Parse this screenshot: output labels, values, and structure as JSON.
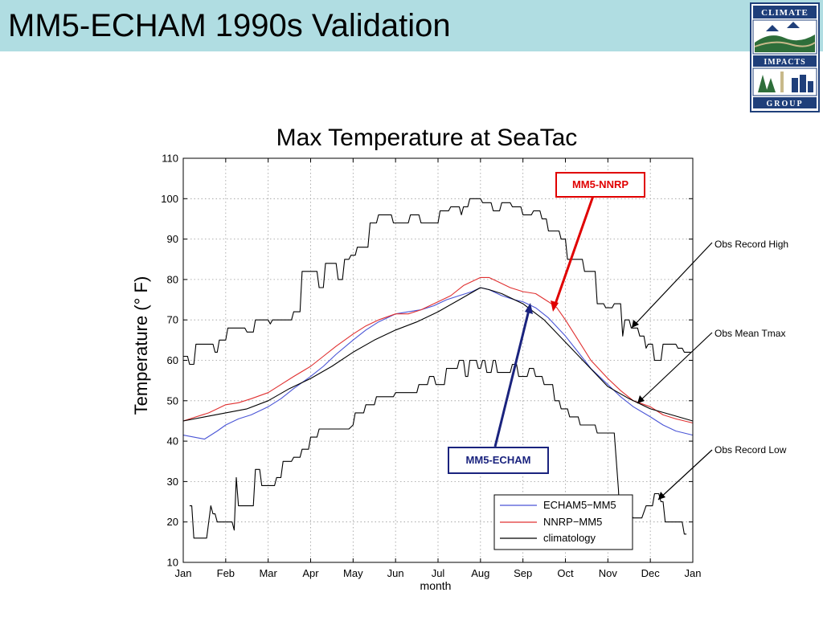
{
  "slide": {
    "title": "MM5-ECHAM 1990s Validation",
    "title_bar_color": "#b0dde2"
  },
  "logo": {
    "name": "climate-impacts-group-logo",
    "text_lines": [
      "CLIMATE",
      "IMPACTS",
      "GROUP"
    ],
    "colors": {
      "navy": "#1f3f7a",
      "green": "#2e6e3a",
      "tan": "#c8b98a"
    }
  },
  "annotations": {
    "record_high": "Obs Record High",
    "mean_tmax": "Obs Mean Tmax",
    "record_low": "Obs Record Low",
    "callout_nnrp": "MM5-NNRP",
    "callout_echam": "MM5-ECHAM"
  },
  "chart_data": {
    "type": "line",
    "title": "Max Temperature at SeaTac",
    "xlabel": "month",
    "ylabel": "Temperature (°   F)",
    "ylim": [
      10,
      110
    ],
    "xlim": [
      0,
      12
    ],
    "grid": true,
    "legend_position": "bottom-right",
    "x_ticks": [
      "Jan",
      "Feb",
      "Mar",
      "Apr",
      "May",
      "Jun",
      "Jul",
      "Aug",
      "Sep",
      "Oct",
      "Nov",
      "Dec",
      "Jan"
    ],
    "y_ticks": [
      10,
      20,
      30,
      40,
      50,
      60,
      70,
      80,
      90,
      100,
      110
    ],
    "series": [
      {
        "name": "ECHAM5−MM5",
        "color": "#4a55d6",
        "points": [
          [
            0,
            41.5
          ],
          [
            0.25,
            41
          ],
          [
            0.5,
            40.5
          ],
          [
            0.8,
            42.5
          ],
          [
            1,
            44
          ],
          [
            1.3,
            45.5
          ],
          [
            1.6,
            46.5
          ],
          [
            2,
            48.5
          ],
          [
            2.3,
            50.5
          ],
          [
            2.6,
            53
          ],
          [
            3,
            56
          ],
          [
            3.3,
            58.5
          ],
          [
            3.6,
            61.5
          ],
          [
            4,
            65
          ],
          [
            4.3,
            67.5
          ],
          [
            4.6,
            69.5
          ],
          [
            5,
            71.5
          ],
          [
            5.3,
            72
          ],
          [
            5.6,
            72.5
          ],
          [
            5.9,
            73.5
          ],
          [
            6.2,
            75
          ],
          [
            6.5,
            76
          ],
          [
            6.8,
            77
          ],
          [
            7,
            78
          ],
          [
            7.2,
            77.5
          ],
          [
            7.5,
            76
          ],
          [
            7.8,
            75
          ],
          [
            8,
            74.5
          ],
          [
            8.3,
            73
          ],
          [
            8.6,
            70.5
          ],
          [
            9,
            66
          ],
          [
            9.3,
            62
          ],
          [
            9.6,
            58
          ],
          [
            10,
            54
          ],
          [
            10.3,
            51
          ],
          [
            10.6,
            48.5
          ],
          [
            11,
            46
          ],
          [
            11.3,
            44
          ],
          [
            11.6,
            42.5
          ],
          [
            12,
            41.5
          ]
        ]
      },
      {
        "name": "NNRP−MM5",
        "color": "#e03030",
        "points": [
          [
            0,
            45
          ],
          [
            0.3,
            46
          ],
          [
            0.6,
            47
          ],
          [
            1,
            49
          ],
          [
            1.3,
            49.5
          ],
          [
            1.6,
            50.5
          ],
          [
            2,
            52
          ],
          [
            2.3,
            54
          ],
          [
            2.6,
            56
          ],
          [
            3,
            58.5
          ],
          [
            3.3,
            61
          ],
          [
            3.6,
            63.5
          ],
          [
            4,
            66.5
          ],
          [
            4.3,
            68.5
          ],
          [
            4.6,
            70
          ],
          [
            5,
            71.5
          ],
          [
            5.3,
            71.5
          ],
          [
            5.6,
            72.5
          ],
          [
            6,
            74.5
          ],
          [
            6.3,
            76
          ],
          [
            6.6,
            78.5
          ],
          [
            7,
            80.5
          ],
          [
            7.2,
            80.5
          ],
          [
            7.4,
            79.5
          ],
          [
            7.7,
            78
          ],
          [
            8,
            77
          ],
          [
            8.3,
            76.5
          ],
          [
            8.6,
            74.5
          ],
          [
            8.8,
            73
          ],
          [
            9,
            70
          ],
          [
            9.3,
            65
          ],
          [
            9.6,
            60
          ],
          [
            10,
            55.5
          ],
          [
            10.3,
            52.5
          ],
          [
            10.6,
            50
          ],
          [
            11,
            48.5
          ],
          [
            11.3,
            46.5
          ],
          [
            11.6,
            45.5
          ],
          [
            12,
            44.5
          ]
        ]
      },
      {
        "name": "climatology",
        "color": "#000000",
        "points": [
          [
            0,
            45
          ],
          [
            0.5,
            46
          ],
          [
            1,
            47
          ],
          [
            1.5,
            48
          ],
          [
            2,
            50
          ],
          [
            2.5,
            53
          ],
          [
            3,
            55.5
          ],
          [
            3.5,
            58.5
          ],
          [
            4,
            62
          ],
          [
            4.5,
            65
          ],
          [
            5,
            67.5
          ],
          [
            5.5,
            69.5
          ],
          [
            6,
            72
          ],
          [
            6.5,
            75
          ],
          [
            7,
            78
          ],
          [
            7.2,
            77.5
          ],
          [
            7.5,
            76.5
          ],
          [
            8,
            74
          ],
          [
            8.5,
            70
          ],
          [
            9,
            64.5
          ],
          [
            9.5,
            59
          ],
          [
            10,
            53.5
          ],
          [
            10.5,
            50.5
          ],
          [
            11,
            48
          ],
          [
            11.5,
            46.5
          ],
          [
            12,
            45
          ]
        ]
      },
      {
        "name": "Obs Record High",
        "color": "#000000",
        "legend": false,
        "points": [
          [
            0,
            61
          ],
          [
            0.1,
            61
          ],
          [
            0.15,
            59
          ],
          [
            0.25,
            59
          ],
          [
            0.3,
            64
          ],
          [
            0.7,
            64
          ],
          [
            0.75,
            62
          ],
          [
            0.8,
            62
          ],
          [
            0.85,
            65
          ],
          [
            1,
            65
          ],
          [
            1.05,
            68
          ],
          [
            1.45,
            68
          ],
          [
            1.5,
            67
          ],
          [
            1.65,
            67
          ],
          [
            1.7,
            70
          ],
          [
            2,
            70
          ],
          [
            2.05,
            69
          ],
          [
            2.1,
            70
          ],
          [
            2.55,
            70
          ],
          [
            2.6,
            72
          ],
          [
            2.75,
            72
          ],
          [
            2.8,
            82
          ],
          [
            3.15,
            82
          ],
          [
            3.2,
            78
          ],
          [
            3.3,
            78
          ],
          [
            3.35,
            84
          ],
          [
            3.6,
            84
          ],
          [
            3.65,
            80
          ],
          [
            3.75,
            80
          ],
          [
            3.8,
            85
          ],
          [
            3.9,
            85
          ],
          [
            3.95,
            86
          ],
          [
            4.05,
            86
          ],
          [
            4.1,
            88
          ],
          [
            4.35,
            88
          ],
          [
            4.4,
            94
          ],
          [
            4.55,
            94
          ],
          [
            4.6,
            96
          ],
          [
            4.9,
            96
          ],
          [
            4.95,
            94
          ],
          [
            5.3,
            94
          ],
          [
            5.35,
            96
          ],
          [
            5.55,
            96
          ],
          [
            5.6,
            94
          ],
          [
            6,
            94
          ],
          [
            6.05,
            97
          ],
          [
            6.25,
            97
          ],
          [
            6.3,
            98
          ],
          [
            6.5,
            98
          ],
          [
            6.55,
            96
          ],
          [
            6.6,
            98
          ],
          [
            6.7,
            98
          ],
          [
            6.75,
            100
          ],
          [
            7,
            100
          ],
          [
            7.05,
            99
          ],
          [
            7.25,
            99
          ],
          [
            7.3,
            97
          ],
          [
            7.45,
            97
          ],
          [
            7.5,
            99
          ],
          [
            7.7,
            99
          ],
          [
            7.75,
            98
          ],
          [
            7.95,
            98
          ],
          [
            8,
            96
          ],
          [
            8.2,
            96
          ],
          [
            8.25,
            97
          ],
          [
            8.4,
            97
          ],
          [
            8.45,
            95
          ],
          [
            8.55,
            95
          ],
          [
            8.6,
            92
          ],
          [
            8.85,
            92
          ],
          [
            8.9,
            90
          ],
          [
            9,
            90
          ],
          [
            9.05,
            85
          ],
          [
            9.4,
            85
          ],
          [
            9.45,
            82
          ],
          [
            9.7,
            82
          ],
          [
            9.75,
            74
          ],
          [
            9.9,
            74
          ],
          [
            9.95,
            73
          ],
          [
            10.1,
            73
          ],
          [
            10.15,
            74
          ],
          [
            10.3,
            74
          ],
          [
            10.35,
            66
          ],
          [
            10.4,
            70
          ],
          [
            10.5,
            70
          ],
          [
            10.55,
            68
          ],
          [
            10.7,
            68
          ],
          [
            10.75,
            66
          ],
          [
            10.85,
            66
          ],
          [
            10.9,
            63
          ],
          [
            10.95,
            64
          ],
          [
            11.05,
            64
          ],
          [
            11.1,
            60
          ],
          [
            11.25,
            60
          ],
          [
            11.3,
            64
          ],
          [
            11.6,
            64
          ],
          [
            11.65,
            63
          ],
          [
            11.75,
            63
          ],
          [
            11.8,
            62
          ],
          [
            11.95,
            62
          ]
        ]
      },
      {
        "name": "Obs Record Low",
        "color": "#000000",
        "legend": false,
        "points": [
          [
            0.15,
            24
          ],
          [
            0.2,
            24
          ],
          [
            0.25,
            16
          ],
          [
            0.55,
            16
          ],
          [
            0.6,
            20
          ],
          [
            0.65,
            24
          ],
          [
            0.7,
            22
          ],
          [
            0.75,
            22
          ],
          [
            0.8,
            20
          ],
          [
            1.15,
            20
          ],
          [
            1.2,
            18
          ],
          [
            1.25,
            31
          ],
          [
            1.3,
            24
          ],
          [
            1.65,
            24
          ],
          [
            1.7,
            33
          ],
          [
            1.8,
            33
          ],
          [
            1.85,
            29
          ],
          [
            2.15,
            29
          ],
          [
            2.2,
            31
          ],
          [
            2.3,
            31
          ],
          [
            2.35,
            35
          ],
          [
            2.55,
            35
          ],
          [
            2.6,
            36
          ],
          [
            2.75,
            36
          ],
          [
            2.8,
            38
          ],
          [
            2.95,
            38
          ],
          [
            3,
            41
          ],
          [
            3.15,
            41
          ],
          [
            3.2,
            43
          ],
          [
            3.9,
            43
          ],
          [
            4,
            44
          ],
          [
            4.05,
            47
          ],
          [
            4.25,
            47
          ],
          [
            4.3,
            49
          ],
          [
            4.5,
            49
          ],
          [
            4.55,
            51
          ],
          [
            4.95,
            51
          ],
          [
            5,
            52
          ],
          [
            5.5,
            52
          ],
          [
            5.55,
            54
          ],
          [
            5.75,
            54
          ],
          [
            5.8,
            56
          ],
          [
            5.9,
            56
          ],
          [
            5.95,
            54
          ],
          [
            6.15,
            54
          ],
          [
            6.2,
            58
          ],
          [
            6.45,
            58
          ],
          [
            6.5,
            60
          ],
          [
            6.6,
            60
          ],
          [
            6.65,
            56
          ],
          [
            6.7,
            56
          ],
          [
            6.75,
            60
          ],
          [
            6.9,
            60
          ],
          [
            6.95,
            58
          ],
          [
            7,
            58
          ],
          [
            7.05,
            60
          ],
          [
            7.1,
            60
          ],
          [
            7.15,
            57
          ],
          [
            7.25,
            57
          ],
          [
            7.3,
            60
          ],
          [
            7.35,
            60
          ],
          [
            7.4,
            57
          ],
          [
            7.7,
            57
          ],
          [
            7.75,
            59
          ],
          [
            7.85,
            59
          ],
          [
            7.9,
            56
          ],
          [
            8.1,
            56
          ],
          [
            8.15,
            58
          ],
          [
            8.25,
            58
          ],
          [
            8.3,
            56
          ],
          [
            8.45,
            56
          ],
          [
            8.5,
            54
          ],
          [
            8.7,
            54
          ],
          [
            8.75,
            50
          ],
          [
            8.85,
            50
          ],
          [
            8.9,
            48
          ],
          [
            9.05,
            48
          ],
          [
            9.1,
            46
          ],
          [
            9.3,
            46
          ],
          [
            9.35,
            44
          ],
          [
            9.7,
            44
          ],
          [
            9.75,
            42
          ],
          [
            10.15,
            42
          ],
          [
            10.2,
            35
          ],
          [
            10.25,
            28
          ],
          [
            10.3,
            16
          ],
          [
            10.4,
            19
          ],
          [
            10.5,
            22
          ],
          [
            10.6,
            21
          ],
          [
            10.8,
            21
          ],
          [
            10.9,
            24
          ],
          [
            11.05,
            24
          ],
          [
            11.1,
            27
          ],
          [
            11.2,
            27
          ],
          [
            11.25,
            25
          ],
          [
            11.3,
            25
          ],
          [
            11.35,
            20
          ],
          [
            11.75,
            20
          ],
          [
            11.8,
            17
          ],
          [
            11.85,
            17
          ]
        ]
      }
    ]
  }
}
